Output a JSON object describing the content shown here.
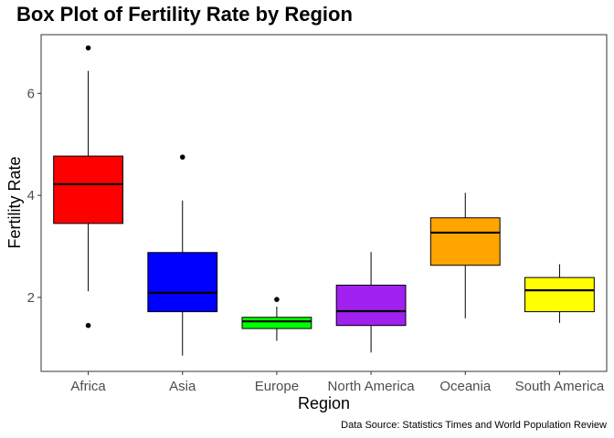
{
  "chart_data": {
    "type": "box",
    "title": "Box Plot of Fertility Rate by Region",
    "xlabel": "Region",
    "ylabel": "Fertility Rate",
    "caption": "Data Source: Statistics Times and World Population Review",
    "ylim": [
      0.55,
      7.15
    ],
    "yticks": [
      2,
      4,
      6
    ],
    "grid": false,
    "boxes": [
      {
        "category": "Africa",
        "color": "#ff0000",
        "whisker_low": 2.12,
        "q1": 3.45,
        "median": 4.22,
        "q3": 4.77,
        "whisker_high": 6.44,
        "outliers": [
          6.89,
          1.45
        ]
      },
      {
        "category": "Asia",
        "color": "#0000ff",
        "whisker_low": 0.86,
        "q1": 1.72,
        "median": 2.09,
        "q3": 2.88,
        "whisker_high": 3.9,
        "outliers": [
          4.75
        ]
      },
      {
        "category": "Europe",
        "color": "#00ff00",
        "whisker_low": 1.15,
        "q1": 1.39,
        "median": 1.53,
        "q3": 1.61,
        "whisker_high": 1.82,
        "outliers": [
          1.96
        ]
      },
      {
        "category": "North America",
        "color": "#a020f0",
        "whisker_low": 0.92,
        "q1": 1.45,
        "median": 1.73,
        "q3": 2.24,
        "whisker_high": 2.89,
        "outliers": []
      },
      {
        "category": "Oceania",
        "color": "#ffa500",
        "whisker_low": 1.59,
        "q1": 2.63,
        "median": 3.27,
        "q3": 3.56,
        "whisker_high": 4.05,
        "outliers": []
      },
      {
        "category": "South America",
        "color": "#ffff00",
        "whisker_low": 1.5,
        "q1": 1.72,
        "median": 2.14,
        "q3": 2.39,
        "whisker_high": 2.65,
        "outliers": []
      }
    ]
  }
}
